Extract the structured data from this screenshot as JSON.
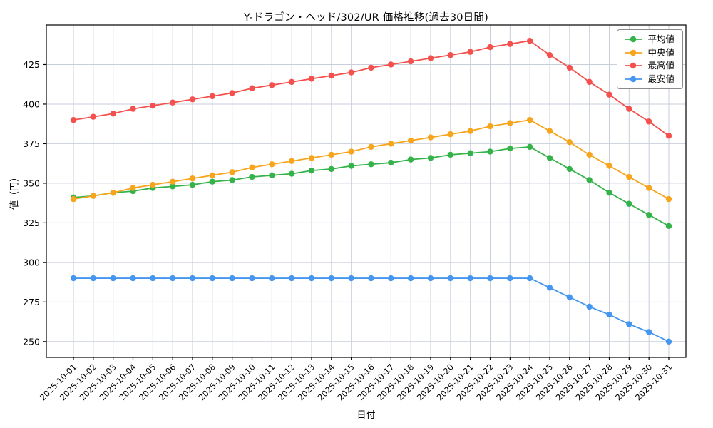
{
  "chart_data": {
    "type": "line",
    "title": "Y-ドラゴン・ヘッド/302/UR 価格推移(過去30日間)",
    "xlabel": "日付",
    "ylabel": "値（円）",
    "ylim": [
      240,
      450
    ],
    "yticks": [
      250,
      275,
      300,
      325,
      350,
      375,
      400,
      425
    ],
    "grid": true,
    "legend_position": "upper right",
    "colors": {
      "grid": "#c9cedb",
      "axis": "#000000",
      "text": "#000000",
      "background": "#ffffff"
    },
    "categories": [
      "2025-10-01",
      "2025-10-02",
      "2025-10-03",
      "2025-10-04",
      "2025-10-05",
      "2025-10-06",
      "2025-10-07",
      "2025-10-08",
      "2025-10-09",
      "2025-10-10",
      "2025-10-11",
      "2025-10-12",
      "2025-10-13",
      "2025-10-14",
      "2025-10-15",
      "2025-10-16",
      "2025-10-17",
      "2025-10-18",
      "2025-10-19",
      "2025-10-20",
      "2025-10-21",
      "2025-10-22",
      "2025-10-23",
      "2025-10-24",
      "2025-10-25",
      "2025-10-26",
      "2025-10-27",
      "2025-10-28",
      "2025-10-29",
      "2025-10-30",
      "2025-10-31"
    ],
    "series": [
      {
        "name": "平均値",
        "color": "#35b34b",
        "values": [
          341,
          342,
          344,
          345,
          347,
          348,
          349,
          351,
          352,
          354,
          355,
          356,
          358,
          359,
          361,
          362,
          363,
          365,
          366,
          368,
          369,
          370,
          372,
          373,
          366,
          359,
          352,
          344,
          337,
          330,
          323
        ]
      },
      {
        "name": "中央値",
        "color": "#f6a51c",
        "values": [
          340,
          342,
          344,
          347,
          349,
          351,
          353,
          355,
          357,
          360,
          362,
          364,
          366,
          368,
          370,
          373,
          375,
          377,
          379,
          381,
          383,
          386,
          388,
          390,
          383,
          376,
          368,
          361,
          354,
          347,
          340
        ]
      },
      {
        "name": "最高値",
        "color": "#f4514e",
        "values": [
          390,
          392,
          394,
          397,
          399,
          401,
          403,
          405,
          407,
          410,
          412,
          414,
          416,
          418,
          420,
          423,
          425,
          427,
          429,
          431,
          433,
          436,
          438,
          440,
          431,
          423,
          414,
          406,
          397,
          389,
          380
        ]
      },
      {
        "name": "最安値",
        "color": "#4596f0",
        "values": [
          290,
          290,
          290,
          290,
          290,
          290,
          290,
          290,
          290,
          290,
          290,
          290,
          290,
          290,
          290,
          290,
          290,
          290,
          290,
          290,
          290,
          290,
          290,
          290,
          284,
          278,
          272,
          267,
          261,
          256,
          250
        ]
      }
    ]
  }
}
